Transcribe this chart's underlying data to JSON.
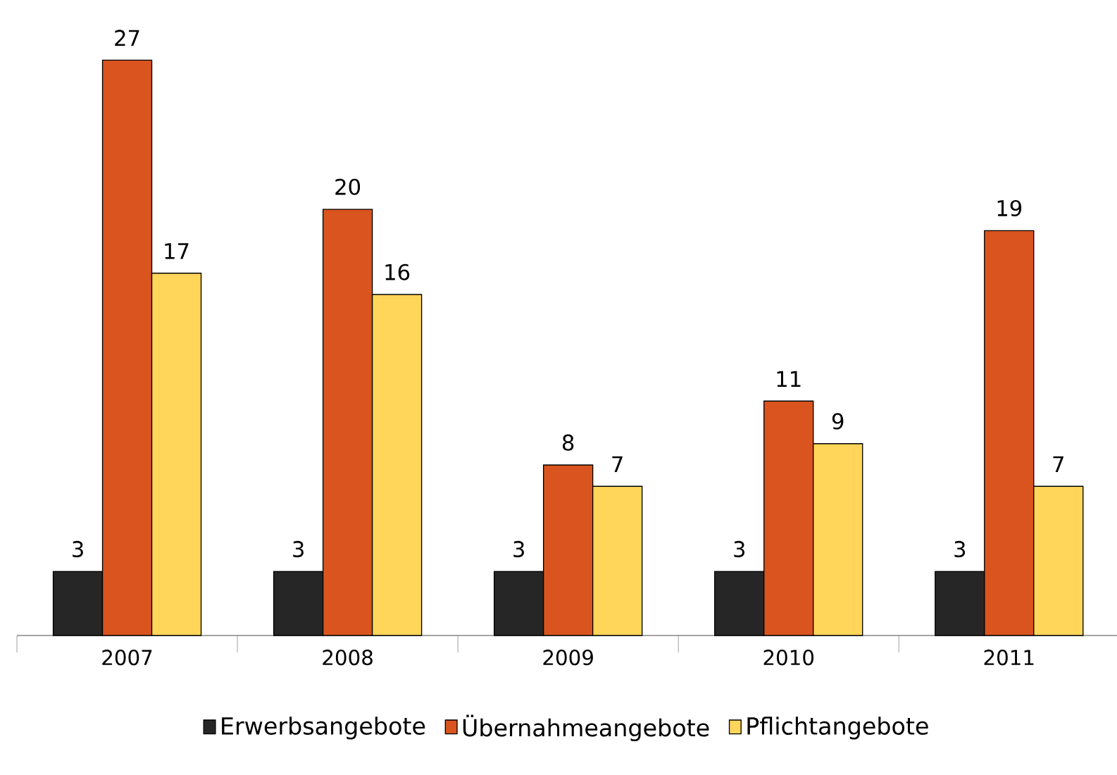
{
  "chart_data": {
    "type": "bar",
    "categories": [
      "2007",
      "2008",
      "2009",
      "2010",
      "2011"
    ],
    "series": [
      {
        "name": "Erwerbsangebote",
        "color": "#262626",
        "values": [
          3,
          3,
          3,
          3,
          3
        ]
      },
      {
        "name": "Übernahmeangebote",
        "color": "#d9541e",
        "values": [
          27,
          20,
          8,
          11,
          19
        ]
      },
      {
        "name": "Pflichtangebote",
        "color": "#ffd55a",
        "values": [
          17,
          16,
          7,
          9,
          7
        ]
      }
    ],
    "data_labels": true,
    "legend": "bottom"
  }
}
